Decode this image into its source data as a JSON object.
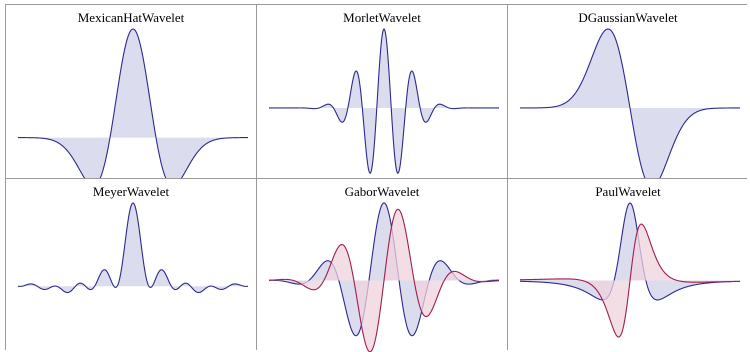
{
  "colors": {
    "blue_line": "#2b2a8e",
    "blue_fill": "#d6d6ec",
    "red_line": "#9c1f4f",
    "red_fill": "#f0d3de",
    "grid_border": "#9a9a9a"
  },
  "panels": [
    {
      "title": "MexicanHatWavelet",
      "curves": [
        {
          "fn": "mexhat",
          "color": "blue"
        }
      ],
      "xrange": [
        -5,
        5
      ],
      "y_max": 1.0,
      "ymax_frac": 0.77
    },
    {
      "title": "MorletWavelet",
      "curves": [
        {
          "fn": "morlet",
          "color": "blue"
        }
      ],
      "xrange": [
        -5,
        5
      ],
      "y_max": 1.0,
      "ymax_frac": 0.56
    },
    {
      "title": "DGaussianWavelet",
      "curves": [
        {
          "fn": "dgauss",
          "color": "blue"
        }
      ],
      "xrange": [
        -5,
        5
      ],
      "y_max": 1.0,
      "ymax_frac": 0.56
    },
    {
      "title": "MeyerWavelet",
      "curves": [
        {
          "fn": "meyer",
          "color": "blue"
        }
      ],
      "xrange": [
        -6,
        6
      ],
      "y_max": 1.0,
      "ymax_frac": 0.59
    },
    {
      "title": "GaborWavelet",
      "curves": [
        {
          "fn": "gabor_re",
          "color": "blue"
        },
        {
          "fn": "gabor_im",
          "color": "red"
        }
      ],
      "xrange": [
        -4,
        4
      ],
      "y_max": 1.0,
      "ymax_frac": 0.55
    },
    {
      "title": "PaulWavelet",
      "curves": [
        {
          "fn": "paul_re",
          "color": "blue"
        },
        {
          "fn": "paul_im",
          "color": "red"
        }
      ],
      "xrange": [
        -4,
        4
      ],
      "y_max": 1.0,
      "ymax_frac": 0.55
    }
  ]
}
